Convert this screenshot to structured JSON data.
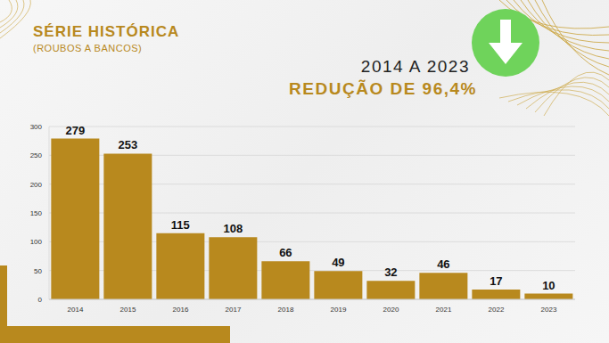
{
  "chart_data": {
    "type": "bar",
    "title": "SÉRIE HISTÓRICA",
    "subtitle": "(ROUBOS A BANCOS)",
    "annotations": [
      "2014 A 2023",
      "REDUÇÃO DE 96,4%"
    ],
    "categories": [
      "2014",
      "2015",
      "2016",
      "2017",
      "2018",
      "2019",
      "2020",
      "2021",
      "2022",
      "2023"
    ],
    "values": [
      279,
      253,
      115,
      108,
      66,
      49,
      32,
      46,
      17,
      10
    ],
    "color": "#b8891e",
    "ylim": [
      0,
      300
    ],
    "yticks": [
      0,
      50,
      100,
      150,
      200,
      250,
      300
    ],
    "grid": true,
    "data_labels": true
  }
}
